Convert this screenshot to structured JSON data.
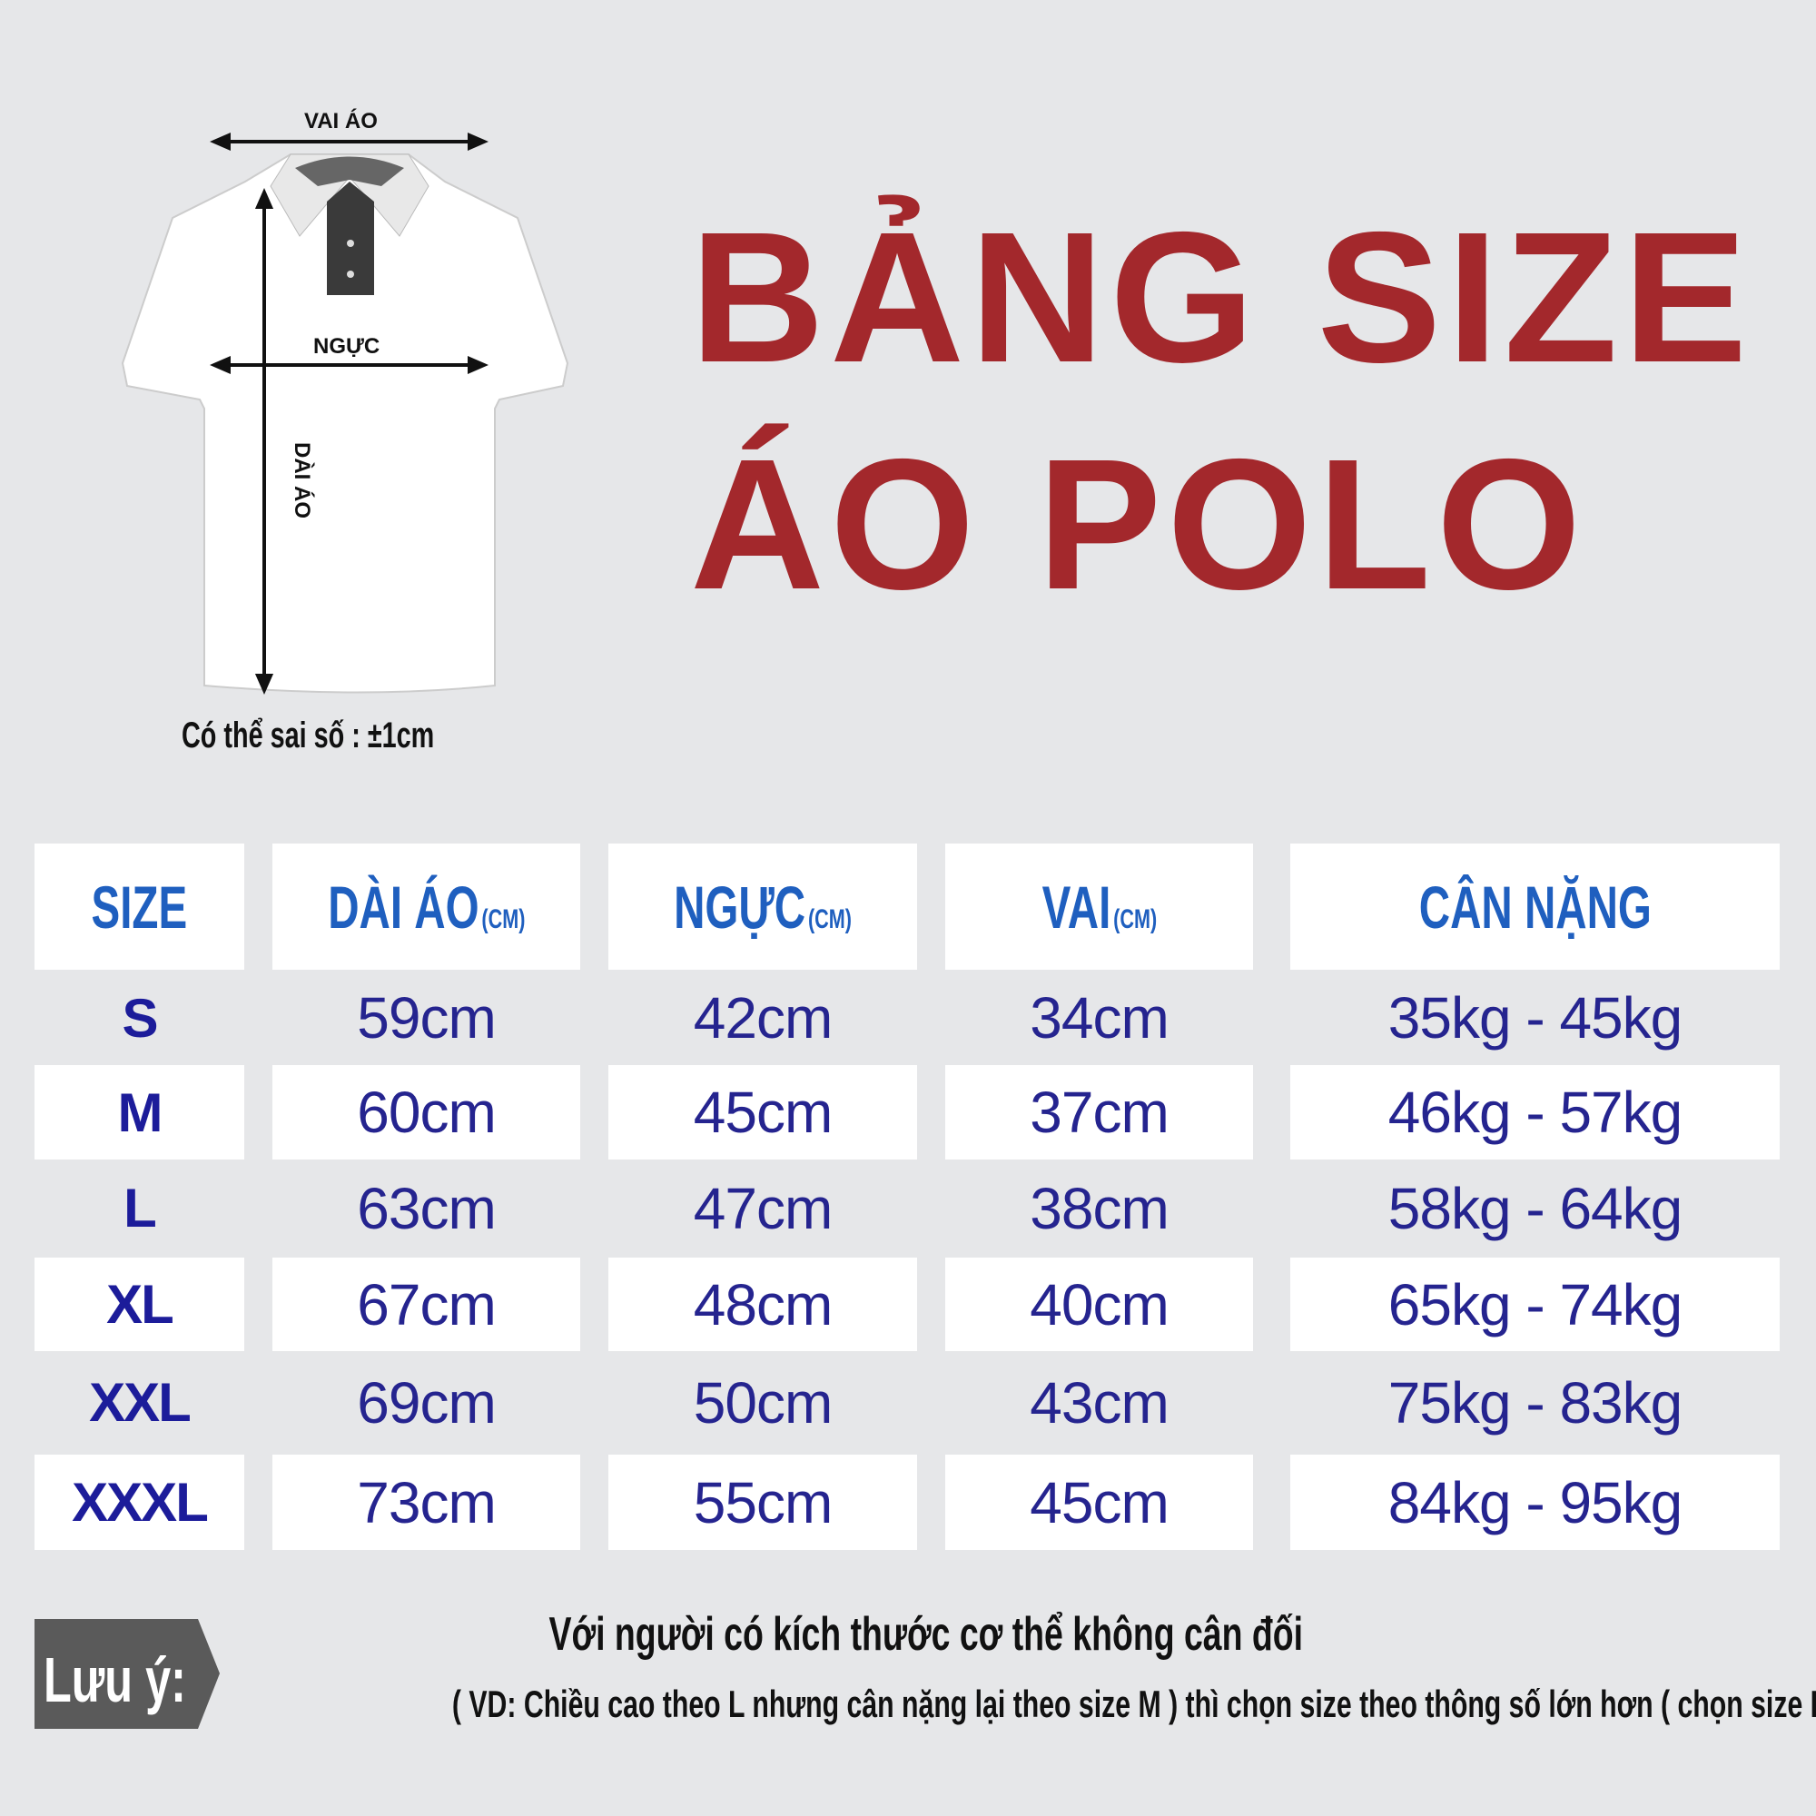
{
  "title": {
    "line1": "BẢNG SIZE",
    "line2": "ÁO POLO"
  },
  "diagram": {
    "shoulder_label": "VAI ÁO",
    "chest_label": "NGỰC",
    "length_label": "DÀI ÁO",
    "tolerance_note": "Có thể sai số : ±1cm"
  },
  "table": {
    "headers": [
      {
        "label": "SIZE",
        "unit": ""
      },
      {
        "label": "DÀI ÁO",
        "unit": "(CM)"
      },
      {
        "label": "NGỰC",
        "unit": "(CM)"
      },
      {
        "label": "VAI",
        "unit": "(CM)"
      },
      {
        "label": "CÂN NẶNG",
        "unit": ""
      }
    ],
    "rows": [
      [
        "S",
        "59cm",
        "42cm",
        "34cm",
        "35kg - 45kg"
      ],
      [
        "M",
        "60cm",
        "45cm",
        "37cm",
        "46kg - 57kg"
      ],
      [
        "L",
        "63cm",
        "47cm",
        "38cm",
        "58kg - 64kg"
      ],
      [
        "XL",
        "67cm",
        "48cm",
        "40cm",
        "65kg - 74kg"
      ],
      [
        "XXL",
        "69cm",
        "50cm",
        "43cm",
        "75kg - 83kg"
      ],
      [
        "XXXL",
        "73cm",
        "55cm",
        "45cm",
        "84kg - 95kg"
      ]
    ]
  },
  "note": {
    "badge": "Lưu ý:",
    "line1": "Với người có kích thước cơ thể không cân đối",
    "line2": "( VD: Chiều cao theo L nhưng cân nặng lại theo size M ) thì chọn size theo thông số lớn hơn ( chọn size L )"
  },
  "colors": {
    "title": "#a3282c",
    "header": "#1f5fbf",
    "values": "#25248f",
    "background": "#e6e7e9",
    "badge": "#5a5a5a"
  }
}
